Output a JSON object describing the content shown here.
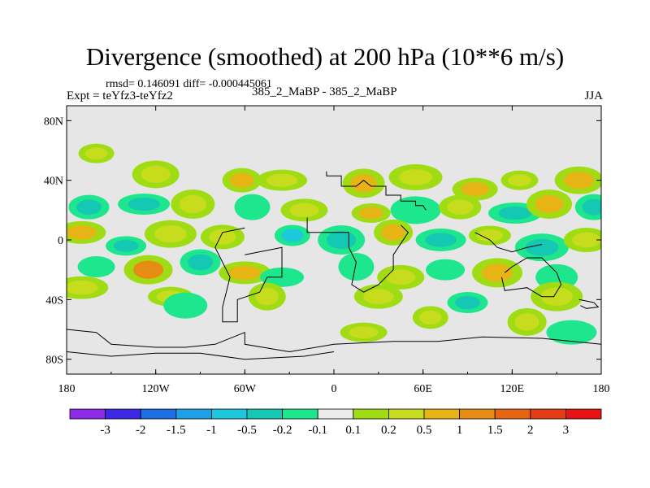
{
  "title": "Divergence (smoothed) at 200 hPa (10**6 m/s)",
  "stats": "rmsd= 0.146091 diff= -0.000445061",
  "experiment": "Expt = teYfz3-teYfz2",
  "case": "385_2_MaBP - 385_2_MaBP",
  "season": "JJA",
  "colors": {
    "missing": "#e6e6e6",
    "coast": "#000000",
    "bins": [
      "#8c2ae6",
      "#3c28e6",
      "#1e6ee6",
      "#1ea0e6",
      "#1ec8dc",
      "#14c8b4",
      "#1ee68c",
      "#ebebeb",
      "#a0dc14",
      "#c8dc1e",
      "#e6b414",
      "#e68c14",
      "#e66414",
      "#e63c14",
      "#e61414"
    ]
  },
  "chart_data": {
    "type": "heatmap",
    "variable": "Divergence (smoothed)",
    "level": "200 hPa",
    "units": "10**6 m/s",
    "x_ticks": [
      {
        "value": -180,
        "label": "180"
      },
      {
        "value": -120,
        "label": "120W"
      },
      {
        "value": -60,
        "label": "60W"
      },
      {
        "value": 0,
        "label": "0"
      },
      {
        "value": 60,
        "label": "60E"
      },
      {
        "value": 120,
        "label": "120E"
      },
      {
        "value": 180,
        "label": "180"
      }
    ],
    "y_ticks": [
      {
        "value": 80,
        "label": "80N"
      },
      {
        "value": 40,
        "label": "40N"
      },
      {
        "value": 0,
        "label": "0"
      },
      {
        "value": -40,
        "label": "40S"
      },
      {
        "value": -80,
        "label": "80S"
      }
    ],
    "xlim": [
      -180,
      180
    ],
    "ylim": [
      -90,
      90
    ],
    "contour_levels": [
      "-3",
      "-2",
      "-1.5",
      "-1",
      "-0.5",
      "-0.2",
      "-0.1",
      "0.1",
      "0.2",
      "0.5",
      "1",
      "1.5",
      "2",
      "3"
    ],
    "blobs": [
      {
        "lon": -160,
        "lat": 58,
        "value": 0.2
      },
      {
        "lon": -120,
        "lat": 44,
        "value": 0.2
      },
      {
        "lon": -62,
        "lat": 40,
        "value": 0.5
      },
      {
        "lon": -35,
        "lat": 40,
        "value": 0.2
      },
      {
        "lon": 20,
        "lat": 38,
        "value": 0.5
      },
      {
        "lon": 55,
        "lat": 42,
        "value": 0.2
      },
      {
        "lon": 95,
        "lat": 34,
        "value": 0.5
      },
      {
        "lon": 125,
        "lat": 40,
        "value": 0.2
      },
      {
        "lon": 165,
        "lat": 40,
        "value": 0.5
      },
      {
        "lon": -165,
        "lat": 22,
        "value": -0.5
      },
      {
        "lon": -128,
        "lat": 24,
        "value": -0.5
      },
      {
        "lon": -95,
        "lat": 24,
        "value": 0.2
      },
      {
        "lon": -55,
        "lat": 22,
        "value": -0.2
      },
      {
        "lon": -20,
        "lat": 20,
        "value": 0.2
      },
      {
        "lon": 25,
        "lat": 18,
        "value": 0.5
      },
      {
        "lon": 55,
        "lat": 20,
        "value": -0.2
      },
      {
        "lon": 85,
        "lat": 22,
        "value": 0.2
      },
      {
        "lon": 122,
        "lat": 18,
        "value": -0.5
      },
      {
        "lon": 145,
        "lat": 24,
        "value": 0.5
      },
      {
        "lon": 175,
        "lat": 22,
        "value": -0.5
      },
      {
        "lon": -170,
        "lat": 5,
        "value": 0.5
      },
      {
        "lon": -140,
        "lat": -4,
        "value": -0.5
      },
      {
        "lon": -110,
        "lat": 4,
        "value": 0.2
      },
      {
        "lon": -75,
        "lat": 2,
        "value": 0.2
      },
      {
        "lon": -28,
        "lat": 3,
        "value": -1
      },
      {
        "lon": 5,
        "lat": 0,
        "value": -0.5
      },
      {
        "lon": 40,
        "lat": 5,
        "value": 0.5
      },
      {
        "lon": 72,
        "lat": 0,
        "value": -0.5
      },
      {
        "lon": 105,
        "lat": 3,
        "value": 0.2
      },
      {
        "lon": 140,
        "lat": -5,
        "value": -0.5
      },
      {
        "lon": 170,
        "lat": 0,
        "value": 0.2
      },
      {
        "lon": -160,
        "lat": -18,
        "value": -0.2
      },
      {
        "lon": -125,
        "lat": -20,
        "value": 1
      },
      {
        "lon": -90,
        "lat": -15,
        "value": -0.5
      },
      {
        "lon": -60,
        "lat": -22,
        "value": 0.5
      },
      {
        "lon": -35,
        "lat": -25,
        "value": -0.2
      },
      {
        "lon": 15,
        "lat": -18,
        "value": -0.2
      },
      {
        "lon": 45,
        "lat": -25,
        "value": 0.2
      },
      {
        "lon": 75,
        "lat": -20,
        "value": -0.2
      },
      {
        "lon": 110,
        "lat": -22,
        "value": 0.5
      },
      {
        "lon": 150,
        "lat": -25,
        "value": -0.2
      },
      {
        "lon": -170,
        "lat": -32,
        "value": 0.2
      },
      {
        "lon": -110,
        "lat": -38,
        "value": 0.2
      },
      {
        "lon": -45,
        "lat": -38,
        "value": 0.2
      },
      {
        "lon": 30,
        "lat": -38,
        "value": 0.2
      },
      {
        "lon": 90,
        "lat": -42,
        "value": -0.5
      },
      {
        "lon": 150,
        "lat": -38,
        "value": 0.2
      },
      {
        "lon": -100,
        "lat": -44,
        "value": -0.2
      },
      {
        "lon": 65,
        "lat": -52,
        "value": 0.2
      },
      {
        "lon": 20,
        "lat": -62,
        "value": 0.2
      },
      {
        "lon": 130,
        "lat": -55,
        "value": 0.2
      },
      {
        "lon": 160,
        "lat": -62,
        "value": -0.2
      }
    ],
    "coastline": [
      [
        [
          -5,
          46
        ],
        [
          -5,
          43
        ],
        [
          5,
          43
        ],
        [
          5,
          36
        ],
        [
          15,
          36
        ],
        [
          20,
          40
        ],
        [
          25,
          36
        ],
        [
          35,
          36
        ],
        [
          35,
          30
        ],
        [
          45,
          30
        ],
        [
          45,
          26
        ],
        [
          55,
          26
        ],
        [
          55,
          23
        ],
        [
          60,
          23
        ],
        [
          62,
          20
        ]
      ],
      [
        [
          -60,
          -10
        ],
        [
          -35,
          -5
        ],
        [
          -35,
          -25
        ],
        [
          -45,
          -25
        ],
        [
          -50,
          -35
        ],
        [
          -65,
          -40
        ],
        [
          -65,
          -55
        ],
        [
          -75,
          -55
        ],
        [
          -75,
          -45
        ],
        [
          -70,
          -25
        ],
        [
          -75,
          -15
        ],
        [
          -80,
          -5
        ],
        [
          -75,
          5
        ],
        [
          -60,
          8
        ]
      ],
      [
        [
          -18,
          15
        ],
        [
          -18,
          5
        ],
        [
          0,
          5
        ],
        [
          10,
          5
        ],
        [
          10,
          -5
        ],
        [
          15,
          -15
        ],
        [
          12,
          -30
        ],
        [
          20,
          -35
        ],
        [
          30,
          -30
        ],
        [
          40,
          -20
        ],
        [
          40,
          -10
        ],
        [
          50,
          5
        ],
        [
          45,
          10
        ]
      ],
      [
        [
          115,
          -22
        ],
        [
          120,
          -18
        ],
        [
          130,
          -12
        ],
        [
          140,
          -12
        ],
        [
          150,
          -22
        ],
        [
          153,
          -30
        ],
        [
          148,
          -38
        ],
        [
          140,
          -38
        ],
        [
          130,
          -32
        ],
        [
          115,
          -34
        ],
        [
          113,
          -25
        ]
      ],
      [
        [
          -180,
          -60
        ],
        [
          -160,
          -62
        ],
        [
          -150,
          -70
        ],
        [
          -120,
          -72
        ],
        [
          -100,
          -72
        ],
        [
          -80,
          -70
        ],
        [
          -60,
          -62
        ],
        [
          -60,
          -70
        ],
        [
          -30,
          -75
        ],
        [
          0,
          -70
        ],
        [
          40,
          -68
        ],
        [
          70,
          -68
        ],
        [
          100,
          -65
        ],
        [
          140,
          -66
        ],
        [
          180,
          -70
        ]
      ],
      [
        [
          -180,
          -75
        ],
        [
          -150,
          -78
        ],
        [
          -120,
          -76
        ],
        [
          -90,
          -76
        ],
        [
          -60,
          -80
        ],
        [
          -20,
          -78
        ],
        [
          0,
          -75
        ]
      ],
      [
        [
          95,
          5
        ],
        [
          105,
          0
        ],
        [
          110,
          -5
        ],
        [
          120,
          -8
        ],
        [
          130,
          -5
        ],
        [
          140,
          -3
        ]
      ],
      [
        [
          165,
          -40
        ],
        [
          175,
          -42
        ],
        [
          178,
          -45
        ],
        [
          170,
          -46
        ],
        [
          166,
          -44
        ]
      ]
    ]
  }
}
